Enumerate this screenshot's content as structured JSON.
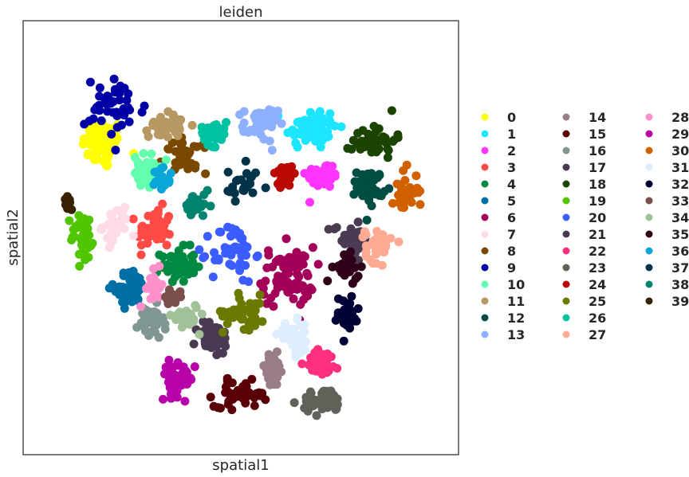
{
  "chart_data": {
    "type": "scatter",
    "title": "leiden",
    "xlabel": "spatial1",
    "ylabel": "spatial2",
    "xticks": [],
    "yticks": [],
    "grid": false,
    "legend_position": "right",
    "legend_columns": 3,
    "clusters": [
      {
        "name": "0",
        "color": "#ffff00",
        "center": [
          0.15,
          0.74
        ],
        "spread": [
          0.05,
          0.06
        ],
        "count": 70
      },
      {
        "name": "1",
        "color": "#1ce6ff",
        "center": [
          0.68,
          0.78
        ],
        "spread": [
          0.06,
          0.05
        ],
        "count": 60
      },
      {
        "name": "2",
        "color": "#ff34ff",
        "center": [
          0.71,
          0.66
        ],
        "spread": [
          0.04,
          0.03
        ],
        "count": 50
      },
      {
        "name": "3",
        "color": "#ff4a46",
        "center": [
          0.28,
          0.52
        ],
        "spread": [
          0.04,
          0.05
        ],
        "count": 50
      },
      {
        "name": "4",
        "color": "#008941",
        "center": [
          0.34,
          0.43
        ],
        "spread": [
          0.04,
          0.04
        ],
        "count": 50
      },
      {
        "name": "5",
        "color": "#006fa6",
        "center": [
          0.22,
          0.37
        ],
        "spread": [
          0.04,
          0.04
        ],
        "count": 50
      },
      {
        "name": "6",
        "color": "#a30059",
        "center": [
          0.62,
          0.4
        ],
        "spread": [
          0.06,
          0.07
        ],
        "count": 75
      },
      {
        "name": "7",
        "color": "#ffdbe5",
        "center": [
          0.18,
          0.53
        ],
        "spread": [
          0.03,
          0.04
        ],
        "count": 35
      },
      {
        "name": "8",
        "color": "#7a4900",
        "center": [
          0.36,
          0.71
        ],
        "spread": [
          0.05,
          0.04
        ],
        "count": 40
      },
      {
        "name": "9",
        "color": "#0000a6",
        "center": [
          0.18,
          0.83
        ],
        "spread": [
          0.07,
          0.07
        ],
        "count": 45
      },
      {
        "name": "10",
        "color": "#63ffac",
        "center": [
          0.26,
          0.67
        ],
        "spread": [
          0.03,
          0.04
        ],
        "count": 40
      },
      {
        "name": "11",
        "color": "#b79762",
        "center": [
          0.31,
          0.79
        ],
        "spread": [
          0.04,
          0.03
        ],
        "count": 40
      },
      {
        "name": "12",
        "color": "#004d43",
        "center": [
          0.83,
          0.63
        ],
        "spread": [
          0.03,
          0.04
        ],
        "count": 45
      },
      {
        "name": "13",
        "color": "#8fb0ff",
        "center": [
          0.55,
          0.79
        ],
        "spread": [
          0.04,
          0.04
        ],
        "count": 45
      },
      {
        "name": "14",
        "color": "#997d87",
        "center": [
          0.58,
          0.16
        ],
        "spread": [
          0.03,
          0.04
        ],
        "count": 40
      },
      {
        "name": "15",
        "color": "#5a0007",
        "center": [
          0.5,
          0.1
        ],
        "spread": [
          0.06,
          0.03
        ],
        "count": 50
      },
      {
        "name": "16",
        "color": "#809693",
        "center": [
          0.27,
          0.28
        ],
        "spread": [
          0.03,
          0.04
        ],
        "count": 40
      },
      {
        "name": "17",
        "color": "#4a3b53",
        "center": [
          0.78,
          0.5
        ],
        "spread": [
          0.04,
          0.04
        ],
        "count": 40
      },
      {
        "name": "18",
        "color": "#1b4400",
        "center": [
          0.84,
          0.75
        ],
        "spread": [
          0.05,
          0.04
        ],
        "count": 45
      },
      {
        "name": "19",
        "color": "#4fc601",
        "center": [
          0.1,
          0.5
        ],
        "spread": [
          0.03,
          0.06
        ],
        "count": 40
      },
      {
        "name": "20",
        "color": "#3b5dff",
        "center": [
          0.48,
          0.46
        ],
        "spread": [
          0.05,
          0.07
        ],
        "count": 50
      },
      {
        "name": "21",
        "color": "#4a3b53",
        "center": [
          0.43,
          0.24
        ],
        "spread": [
          0.04,
          0.04
        ],
        "count": 45
      },
      {
        "name": "22",
        "color": "#ff2f80",
        "center": [
          0.71,
          0.18
        ],
        "spread": [
          0.04,
          0.03
        ],
        "count": 40
      },
      {
        "name": "23",
        "color": "#61615a",
        "center": [
          0.71,
          0.08
        ],
        "spread": [
          0.05,
          0.03
        ],
        "count": 40
      },
      {
        "name": "24",
        "color": "#ba0900",
        "center": [
          0.61,
          0.66
        ],
        "spread": [
          0.03,
          0.03
        ],
        "count": 25
      },
      {
        "name": "25",
        "color": "#6b7900",
        "center": [
          0.51,
          0.31
        ],
        "spread": [
          0.05,
          0.04
        ],
        "count": 45
      },
      {
        "name": "26",
        "color": "#00c2a0",
        "center": [
          0.43,
          0.77
        ],
        "spread": [
          0.03,
          0.03
        ],
        "count": 35
      },
      {
        "name": "27",
        "color": "#ffaa92",
        "center": [
          0.85,
          0.48
        ],
        "spread": [
          0.03,
          0.04
        ],
        "count": 35
      },
      {
        "name": "28",
        "color": "#ff90c9",
        "center": [
          0.28,
          0.37
        ],
        "spread": [
          0.02,
          0.04
        ],
        "count": 25
      },
      {
        "name": "29",
        "color": "#b903aa",
        "center": [
          0.34,
          0.14
        ],
        "spread": [
          0.04,
          0.04
        ],
        "count": 40
      },
      {
        "name": "30",
        "color": "#d16100",
        "center": [
          0.92,
          0.62
        ],
        "spread": [
          0.03,
          0.05
        ],
        "count": 35
      },
      {
        "name": "31",
        "color": "#ddefff",
        "center": [
          0.64,
          0.24
        ],
        "spread": [
          0.04,
          0.04
        ],
        "count": 35
      },
      {
        "name": "32",
        "color": "#000035",
        "center": [
          0.77,
          0.3
        ],
        "spread": [
          0.03,
          0.05
        ],
        "count": 30
      },
      {
        "name": "33",
        "color": "#7b4f4b",
        "center": [
          0.33,
          0.35
        ],
        "spread": [
          0.02,
          0.02
        ],
        "count": 20
      },
      {
        "name": "34",
        "color": "#a1c299",
        "center": [
          0.36,
          0.3
        ],
        "spread": [
          0.03,
          0.03
        ],
        "count": 30
      },
      {
        "name": "35",
        "color": "#300018",
        "center": [
          0.77,
          0.42
        ],
        "spread": [
          0.03,
          0.03
        ],
        "count": 30
      },
      {
        "name": "36",
        "color": "#0aa6d8",
        "center": [
          0.3,
          0.66
        ],
        "spread": [
          0.02,
          0.03
        ],
        "count": 20
      },
      {
        "name": "37",
        "color": "#013349",
        "center": [
          0.5,
          0.63
        ],
        "spread": [
          0.04,
          0.05
        ],
        "count": 25
      },
      {
        "name": "38",
        "color": "#00846f",
        "center": [
          0.39,
          0.58
        ],
        "spread": [
          0.03,
          0.03
        ],
        "count": 25
      },
      {
        "name": "39",
        "color": "#372101",
        "center": [
          0.06,
          0.59
        ],
        "spread": [
          0.01,
          0.02
        ],
        "count": 8
      }
    ],
    "legend": [
      "0",
      "1",
      "2",
      "3",
      "4",
      "5",
      "6",
      "7",
      "8",
      "9",
      "10",
      "11",
      "12",
      "13",
      "14",
      "15",
      "16",
      "17",
      "18",
      "19",
      "20",
      "21",
      "22",
      "23",
      "24",
      "25",
      "26",
      "27",
      "28",
      "29",
      "30",
      "31",
      "32",
      "33",
      "34",
      "35",
      "36",
      "37",
      "38",
      "39"
    ]
  }
}
